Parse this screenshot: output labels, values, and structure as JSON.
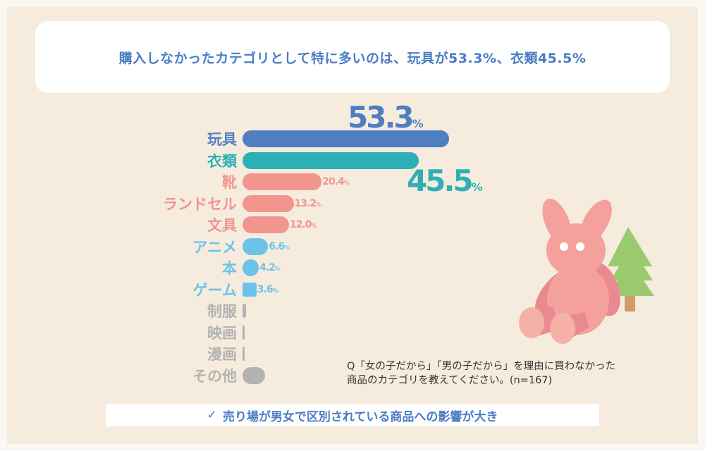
{
  "title": "購入しなかったカテゴリとして特に多いのは、玩具が53.3%、衣類45.5%",
  "question": [
    "Q「女の子だから」「男の子だから」を理由に買わなかった",
    "商品のカテゴリを教えてください。(n=167)"
  ],
  "banner": {
    "check_icon": "✓",
    "text": "売り場が男女で区別されている商品への影響が大き"
  },
  "colors": {
    "blue": "#4f7fc2",
    "teal": "#2db0b5",
    "pink": "#f1958f",
    "light_blue": "#6cc3ea",
    "gray": "#b3b3b3",
    "background": "#f6ecdd"
  },
  "chart_data": {
    "type": "bar",
    "orientation": "horizontal",
    "unit": "%",
    "categories": [
      "玩具",
      "衣類",
      "靴",
      "ランドセル",
      "文具",
      "アニメ",
      "本",
      "ゲーム",
      "制服",
      "映画",
      "漫画",
      "その他"
    ],
    "values": [
      53.3,
      45.5,
      20.4,
      13.2,
      12.0,
      6.6,
      4.2,
      3.6,
      1.0,
      0.6,
      0.6,
      5.8
    ],
    "labels": [
      "53.3",
      "45.5",
      "20.4",
      "13.2",
      "12.0",
      "6.6",
      "4.2",
      "3.6",
      "",
      "",
      "",
      ""
    ],
    "bar_colors": [
      "#4f7fc2",
      "#2db0b5",
      "#f1958f",
      "#f1958f",
      "#f1958f",
      "#6cc3ea",
      "#6cc3ea",
      "#6cc3ea",
      "#b3b3b3",
      "#b3b3b3",
      "#b3b3b3",
      "#b3b3b3"
    ],
    "label_colors": [
      "#4f7fc2",
      "#2db0b5",
      "#f1958f",
      "#f1958f",
      "#f1958f",
      "#6cc3ea",
      "#6cc3ea",
      "#6cc3ea",
      "#b3b3b3",
      "#b3b3b3",
      "#b3b3b3",
      "#b3b3b3"
    ],
    "xlim": [
      0,
      55
    ],
    "grid": false,
    "legend": "none"
  },
  "illustration": {
    "icons": [
      "rabbit-plush-icon",
      "tree-icon"
    ]
  }
}
